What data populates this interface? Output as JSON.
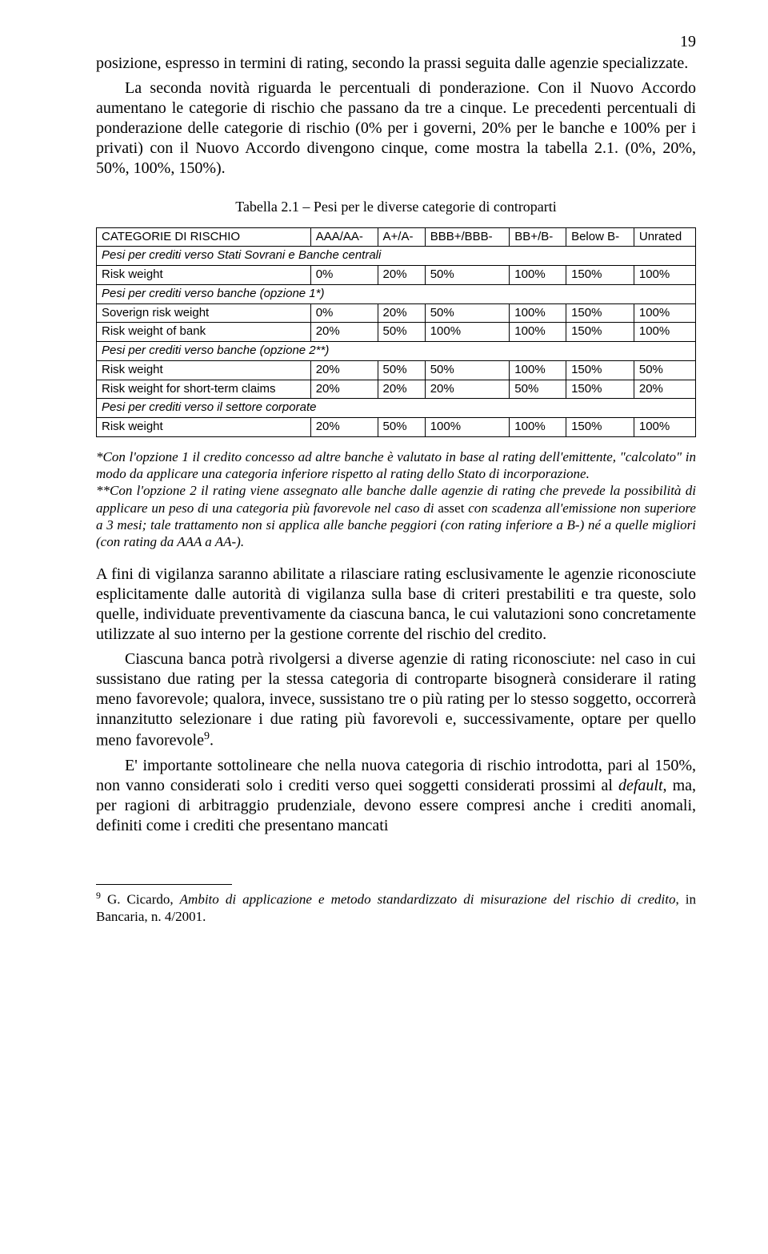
{
  "page_number": "19",
  "para1": "posizione, espresso in termini di rating, secondo la prassi seguita dalle agenzie specializzate.",
  "para2": "La seconda novità riguarda le percentuali di ponderazione. Con il Nuovo Accordo aumentano le categorie di rischio che passano da tre a cinque. Le precedenti percentuali di ponderazione delle categorie di rischio (0% per i governi, 20% per le banche e 100% per i privati) con il Nuovo Accordo divengono cinque, come mostra la tabella 2.1. (0%, 20%, 50%, 100%, 150%).",
  "table_caption": "Tabella 2.1 – Pesi per le diverse categorie di controparti",
  "table": {
    "header": [
      "CATEGORIE DI RISCHIO",
      "AAA/AA-",
      "A+/A-",
      "BBB+/BBB-",
      "BB+/B-",
      "Below B-",
      "Unrated"
    ],
    "sections": [
      {
        "title": "Pesi per crediti verso Stati Sovrani e Banche centrali",
        "rows": [
          [
            "Risk weight",
            "0%",
            "20%",
            "50%",
            "100%",
            "150%",
            "100%"
          ]
        ]
      },
      {
        "title": "Pesi per crediti verso banche (opzione 1*)",
        "rows": [
          [
            "Soverign risk weight",
            "0%",
            "20%",
            "50%",
            "100%",
            "150%",
            "100%"
          ],
          [
            "Risk weight of bank",
            "20%",
            "50%",
            "100%",
            "100%",
            "150%",
            "100%"
          ]
        ]
      },
      {
        "title": "Pesi per crediti verso banche (opzione 2**)",
        "rows": [
          [
            "Risk weight",
            "20%",
            "50%",
            "50%",
            "100%",
            "150%",
            "50%"
          ],
          [
            "Risk weight for short-term claims",
            "20%",
            "20%",
            "20%",
            "50%",
            "150%",
            "20%"
          ]
        ]
      },
      {
        "title": "Pesi per crediti verso il settore corporate",
        "rows": [
          [
            "Risk weight",
            "20%",
            "50%",
            "100%",
            "100%",
            "150%",
            "100%"
          ]
        ]
      }
    ]
  },
  "footnote_block_1": "*Con l'opzione 1 il credito concesso ad altre banche è valutato in base al rating dell'emittente, \"calcolato\" in modo da applicare una categoria inferiore rispetto al rating dello Stato di incorporazione.",
  "footnote_block_2a": "**Con l'opzione 2 il rating viene assegnato alle banche dalle agenzie di rating che prevede la possibilità di applicare un peso di una categoria più favorevole nel caso di ",
  "footnote_block_2b": "asset",
  "footnote_block_2c": " con scadenza all'emissione non superiore a 3 mesi; tale trattamento non si applica alle banche peggiori (con rating inferiore a B-) né a quelle migliori (con rating da AAA a AA-).",
  "para3": "A fini di vigilanza saranno abilitate a rilasciare rating esclusivamente le agenzie riconosciute esplicitamente dalle autorità di vigilanza sulla base di criteri prestabiliti e tra queste, solo quelle, individuate preventivamente da ciascuna banca, le cui valutazioni sono concretamente utilizzate al suo interno per la gestione corrente del rischio del credito.",
  "para4_a": "Ciascuna banca potrà rivolgersi a diverse agenzie di rating riconosciute: nel caso in cui sussistano due rating per la stessa categoria di controparte bisognerà considerare il rating meno favorevole; qualora, invece, sussistano tre o più rating per lo stesso soggetto, occorrerà innanzitutto selezionare i due rating più favorevoli e, successivamente, optare per quello meno favorevole",
  "para4_sup": "9",
  "para4_b": ".",
  "para5_a": "E' importante sottolineare che nella nuova categoria di rischio introdotta, pari al 150%, non vanno considerati solo i crediti verso quei soggetti considerati prossimi al ",
  "para5_b": "default",
  "para5_c": ", ma, per ragioni di arbitraggio prudenziale, devono essere compresi anche i crediti anomali, definiti come i crediti che presentano mancati",
  "footnote_num": "9",
  "footnote_a": " G. Cicardo, ",
  "footnote_b": "Ambito di applicazione e metodo standardizzato di misurazione del rischio di credito",
  "footnote_c": ", in Bancaria, n. 4/2001."
}
